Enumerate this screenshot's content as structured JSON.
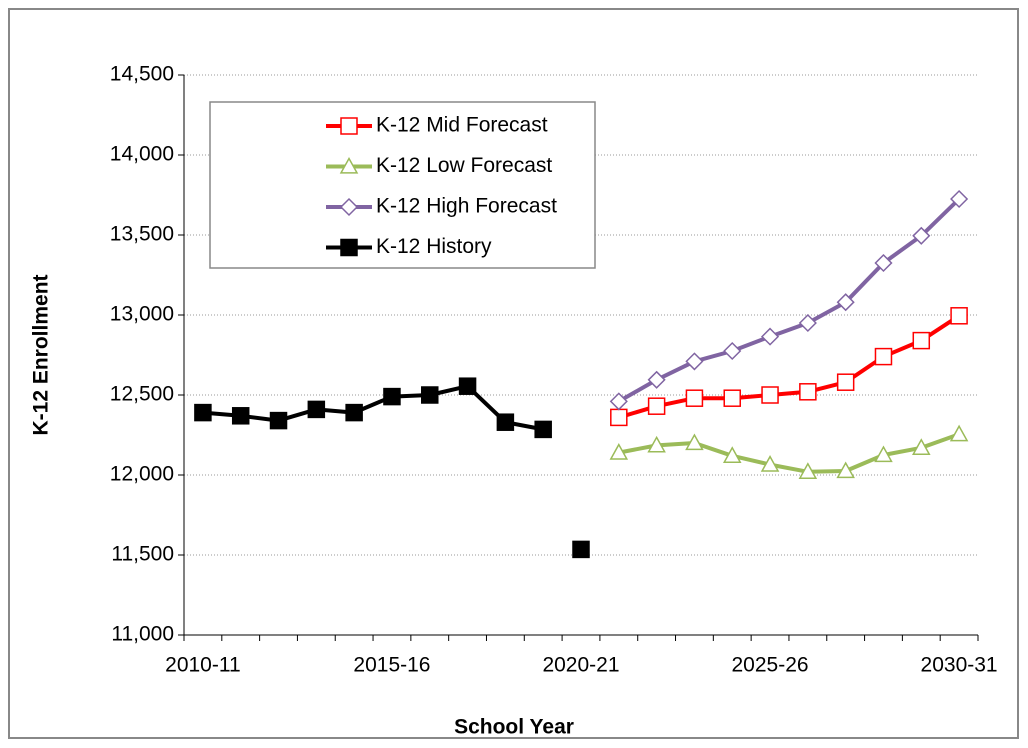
{
  "chart_data": {
    "type": "line",
    "x_label": "School Year",
    "y_label": "K-12 Enrollment",
    "categories": [
      "2010-11",
      null,
      null,
      null,
      null,
      "2015-16",
      null,
      null,
      null,
      null,
      "2020-21",
      null,
      null,
      null,
      null,
      "2025-26",
      null,
      null,
      null,
      null,
      "2030-31"
    ],
    "series": [
      {
        "name": "K-12 Mid Forecast",
        "color": "#ff0000",
        "marker": "square-open",
        "values": [
          null,
          null,
          null,
          null,
          null,
          null,
          null,
          null,
          null,
          null,
          null,
          12360,
          12430,
          12480,
          12480,
          12500,
          12520,
          12580,
          12740,
          12840,
          12995
        ]
      },
      {
        "name": "K-12 Low Forecast",
        "color": "#9bbb59",
        "marker": "triangle-open",
        "values": [
          null,
          null,
          null,
          null,
          null,
          null,
          null,
          null,
          null,
          null,
          null,
          12140,
          12185,
          12200,
          12120,
          12065,
          12020,
          12025,
          12125,
          12170,
          12255
        ]
      },
      {
        "name": "K-12 High Forecast",
        "color": "#8064a2",
        "marker": "diamond-open",
        "values": [
          null,
          null,
          null,
          null,
          null,
          null,
          null,
          null,
          null,
          null,
          null,
          12460,
          12595,
          12710,
          12775,
          12865,
          12950,
          13080,
          13325,
          13495,
          13725
        ]
      },
      {
        "name": "K-12 History",
        "color": "#000000",
        "marker": "square-filled",
        "values": [
          12390,
          12370,
          12340,
          12410,
          12390,
          12490,
          12500,
          12555,
          12330,
          12285,
          null,
          null,
          null,
          null,
          null,
          null,
          null,
          null,
          null,
          null,
          null
        ]
      },
      {
        "color": "#000000",
        "marker": "square-filled",
        "values": [
          null,
          null,
          null,
          null,
          null,
          null,
          null,
          null,
          null,
          null,
          11535,
          null,
          null,
          null,
          null,
          null,
          null,
          null,
          null,
          null,
          null
        ]
      }
    ],
    "ylim": [
      11000,
      14500
    ],
    "yticks": [
      {
        "value": 11000,
        "label": "11,000"
      },
      {
        "value": 11500,
        "label": "11,500"
      },
      {
        "value": 12000,
        "label": "12,000"
      },
      {
        "value": 12500,
        "label": "12,500"
      },
      {
        "value": 13000,
        "label": "13,000"
      },
      {
        "value": 13500,
        "label": "13,500"
      },
      {
        "value": 14000,
        "label": "14,000"
      },
      {
        "value": 14500,
        "label": "14,500"
      }
    ],
    "grid": true,
    "legend": "upper-left"
  }
}
